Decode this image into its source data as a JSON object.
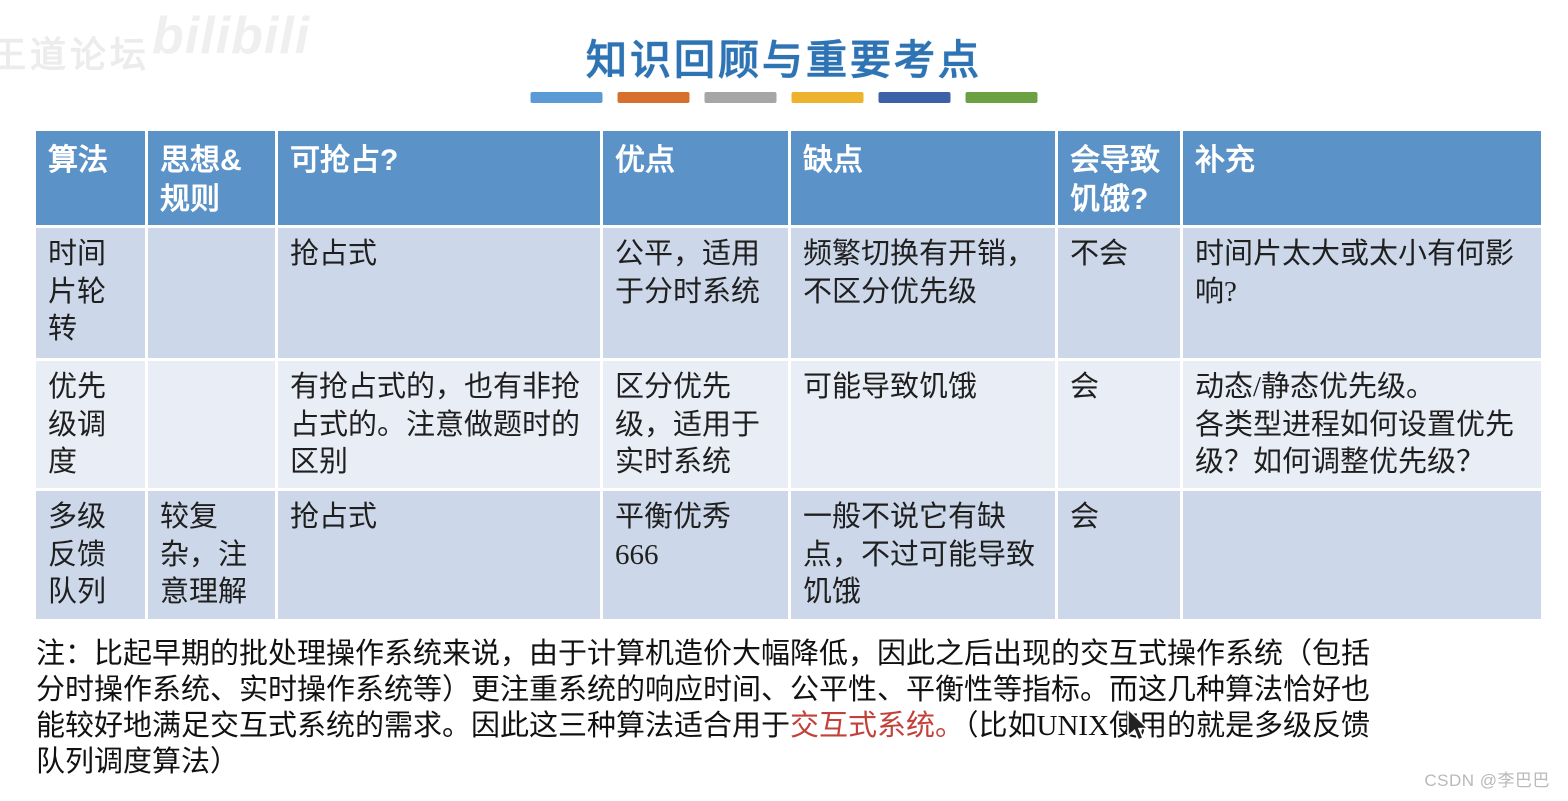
{
  "title": "知识回顾与重要考点",
  "divider_colors": [
    "#5b9bd5",
    "#d8702d",
    "#a6a6a6",
    "#eeb32e",
    "#3c61a9",
    "#6ba043"
  ],
  "watermarks": {
    "top_left_text": "王道论坛",
    "top_left_logo": "bilibili",
    "bottom_right": "CSDN @李巴巴"
  },
  "table": {
    "headers": [
      "算法",
      "思想&\n规则",
      "可抢占?",
      "优点",
      "缺点",
      "会导致\n饥饿?",
      "补充"
    ],
    "rows": [
      [
        "时间片轮转",
        "",
        "抢占式",
        "公平，适用于分时系统",
        "频繁切换有开销，不区分优先级",
        "不会",
        "时间片太大或太小有何影响?"
      ],
      [
        "优先级调度",
        "",
        "有抢占式的，也有非抢占式的。注意做题时的区别",
        "区分优先级，适用于实时系统",
        "可能导致饥饿",
        "会",
        "动态/静态优先级。\n各类型进程如何设置优先级？如何调整优先级？"
      ],
      [
        "多级反馈队列",
        "较复杂，注意理解",
        "抢占式",
        "平衡优秀\n666",
        "一般不说它有缺点，不过可能导致饥饿",
        "会",
        ""
      ]
    ]
  },
  "note": {
    "lines": [
      [
        {
          "t": "注：比起早期的批处理操作系统来说，由于计算机造价大幅降低，因此之后出现的交互式操作系统（包括"
        }
      ],
      [
        {
          "t": "分时操作系统、实时操作系统等）更注重系统的响应时间、公平性、平衡性等指标。而这几种算法恰好也"
        }
      ],
      [
        {
          "t": "能较好地满足交互式系统的需求。因此这三种算法适合用于"
        },
        {
          "t": "交互式系统。",
          "red": true
        },
        {
          "t": "（比如UNIX使用的就是多级反馈"
        }
      ],
      [
        {
          "t": "队列调度算法）"
        }
      ]
    ],
    "highlight_color": "#c2413a"
  },
  "colors": {
    "title": "#2e73b4",
    "header_fill": "#5b93c9",
    "row_odd": "#ccd8e9",
    "row_even": "#e9edf6"
  }
}
